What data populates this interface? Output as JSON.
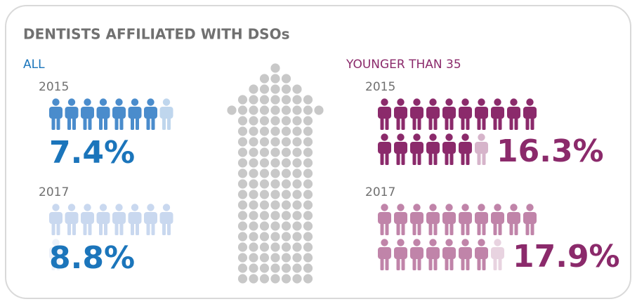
{
  "title": "DENTISTS AFFILIATED WITH DSOs",
  "panels": [
    {
      "label": "ALL",
      "color": "#1b75bb",
      "rows": [
        {
          "year": "2015",
          "value": 7.4,
          "value_label": "7.4%",
          "icon_color": "#4a8ccc"
        },
        {
          "year": "2017",
          "value": 8.8,
          "value_label": "8.8%",
          "icon_color": "#c9d8ef"
        }
      ]
    },
    {
      "label": "YOUNGER THAN 35",
      "color": "#8b2a6b",
      "rows": [
        {
          "year": "2015",
          "value": 16.3,
          "value_label": "16.3%",
          "icon_color": "#8b2a6b"
        },
        {
          "year": "2017",
          "value": 17.9,
          "value_label": "17.9%",
          "icon_color": "#c084a9"
        }
      ]
    }
  ]
}
